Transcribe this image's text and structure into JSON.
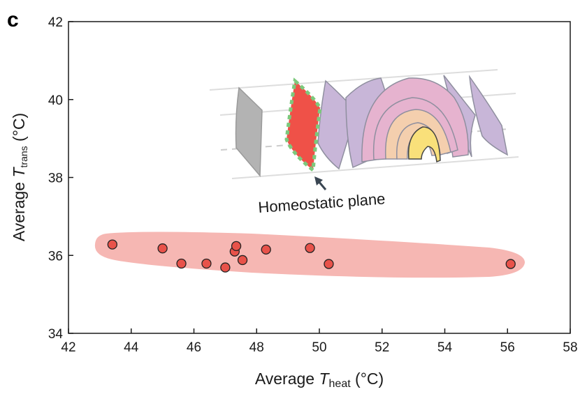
{
  "panel_label": "c",
  "annotation": "Homeostatic plane",
  "colors": {
    "point_fill": "#e8524a",
    "cluster_fill": "#f6b7b3",
    "highlight_plane": "#ef5148",
    "highlight_border": "#7cc97c",
    "gray_plane": "#b3b3b3",
    "purple_plane": "#c8b6d8",
    "pink_plane": "#e6b3cf",
    "peach_plane": "#f4cfae",
    "yellow_plane": "#f9e07a"
  },
  "chart_data": {
    "type": "scatter",
    "title": "",
    "xlabel": {
      "prefix": "Average ",
      "var": "T",
      "sub": "heat",
      "unit": " (°C)"
    },
    "ylabel": {
      "prefix": "Average ",
      "var": "T",
      "sub": "trans",
      "unit": " (°C)"
    },
    "xlim": [
      42,
      58
    ],
    "ylim": [
      34,
      42
    ],
    "xticks": [
      42,
      44,
      46,
      48,
      50,
      52,
      54,
      56,
      58
    ],
    "yticks": [
      34,
      36,
      38,
      40,
      42
    ],
    "grid": false,
    "points": [
      {
        "x": 43.4,
        "y": 36.28
      },
      {
        "x": 45.0,
        "y": 36.18
      },
      {
        "x": 45.6,
        "y": 35.79
      },
      {
        "x": 46.4,
        "y": 35.79
      },
      {
        "x": 47.0,
        "y": 35.69
      },
      {
        "x": 47.3,
        "y": 36.1
      },
      {
        "x": 47.35,
        "y": 36.24
      },
      {
        "x": 47.55,
        "y": 35.88
      },
      {
        "x": 48.3,
        "y": 36.15
      },
      {
        "x": 49.7,
        "y": 36.19
      },
      {
        "x": 50.3,
        "y": 35.78
      },
      {
        "x": 56.1,
        "y": 35.78
      }
    ]
  }
}
